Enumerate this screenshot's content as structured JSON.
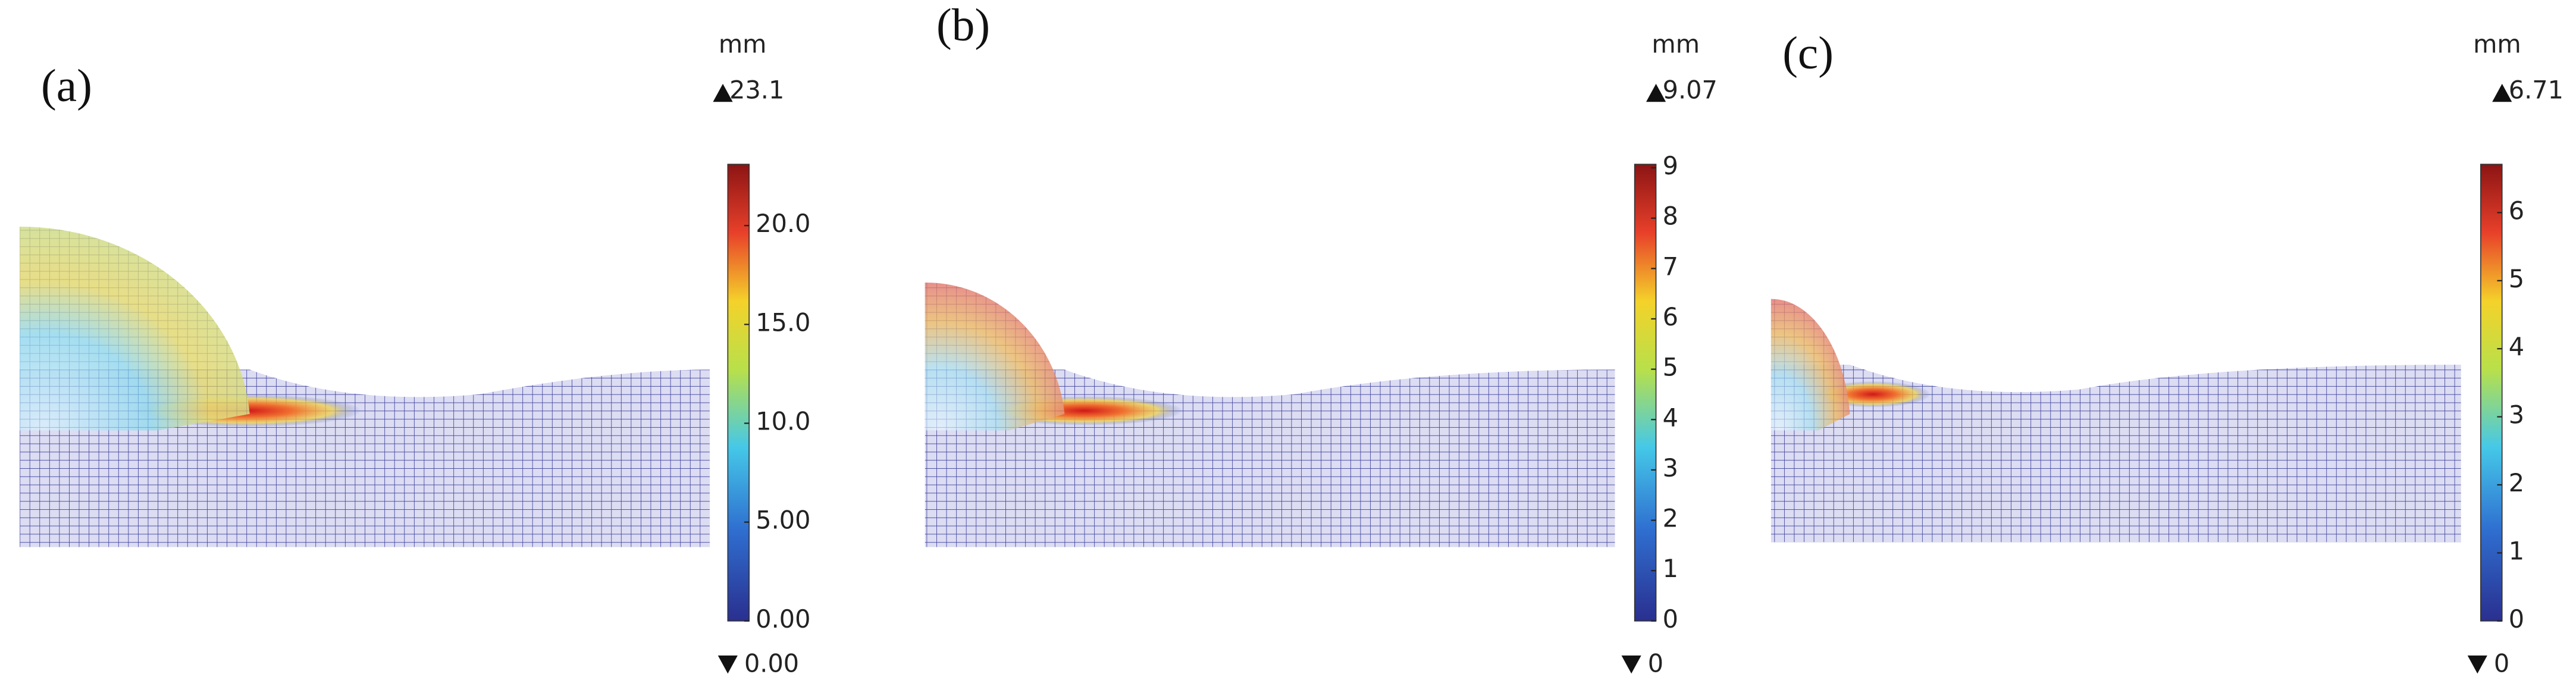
{
  "panels": [
    {
      "label": "(a)",
      "unit": "mm",
      "max": "23.1",
      "min": "0.00",
      "range": [
        0,
        23.1
      ],
      "ticks": [
        {
          "value": 0,
          "label": "0.00"
        },
        {
          "value": 5,
          "label": "5.00"
        },
        {
          "value": 10,
          "label": "10.0"
        },
        {
          "value": 15,
          "label": "15.0"
        },
        {
          "value": 20,
          "label": "20.0"
        }
      ]
    },
    {
      "label": "(b)",
      "unit": "mm",
      "max": "9.07",
      "min": "0",
      "range": [
        0,
        9.07
      ],
      "ticks": [
        0,
        1,
        2,
        3,
        4,
        5,
        6,
        7,
        8,
        9
      ]
    },
    {
      "label": "(c)",
      "unit": "mm",
      "max": "6.71",
      "min": "0",
      "range": [
        0,
        6.71
      ],
      "ticks": [
        0,
        1,
        2,
        3,
        4,
        5,
        6
      ]
    }
  ]
}
